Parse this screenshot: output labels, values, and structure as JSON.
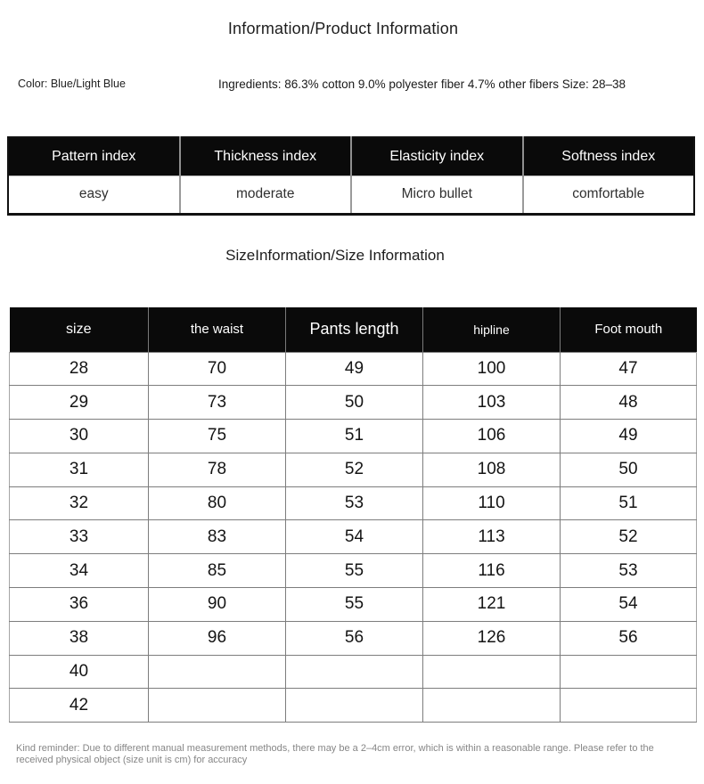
{
  "page": {
    "title": "Information/Product Information",
    "color_label": "Color: Blue/Light Blue",
    "ingredients": "Ingredients: 86.3% cotton 9.0% polyester fiber 4.7% other fibers Size: 28–38",
    "size_section_title": "SizeInformation/Size Information",
    "reminder": "Kind reminder: Due to different manual measurement methods, there may be a 2–4cm error, which is within a reasonable range. Please refer to the received physical object (size unit is cm) for accuracy"
  },
  "index_table": {
    "headers": [
      "Pattern index",
      "Thickness index",
      "Elasticity index",
      "Softness index"
    ],
    "values": [
      "easy",
      "moderate",
      "Micro bullet",
      "comfortable"
    ]
  },
  "size_table": {
    "headers": [
      "size",
      "the waist",
      "Pants length",
      "hipline",
      "Foot mouth"
    ],
    "rows": [
      [
        "28",
        "70",
        "49",
        "100",
        "47"
      ],
      [
        "29",
        "73",
        "50",
        "103",
        "48"
      ],
      [
        "30",
        "75",
        "51",
        "106",
        "49"
      ],
      [
        "31",
        "78",
        "52",
        "108",
        "50"
      ],
      [
        "32",
        "80",
        "53",
        "110",
        "51"
      ],
      [
        "33",
        "83",
        "54",
        "113",
        "52"
      ],
      [
        "34",
        "85",
        "55",
        "116",
        "53"
      ],
      [
        "36",
        "90",
        "55",
        "121",
        "54"
      ],
      [
        "38",
        "96",
        "56",
        "126",
        "56"
      ],
      [
        "40",
        "",
        "",
        "",
        ""
      ],
      [
        "42",
        "",
        "",
        "",
        ""
      ]
    ]
  },
  "colors": {
    "header_bg": "#0a0a0a",
    "header_text": "#ffffff",
    "body_text": "#1c1c1c",
    "grid_line": "#7d7d7d",
    "reminder_text": "#868686"
  }
}
